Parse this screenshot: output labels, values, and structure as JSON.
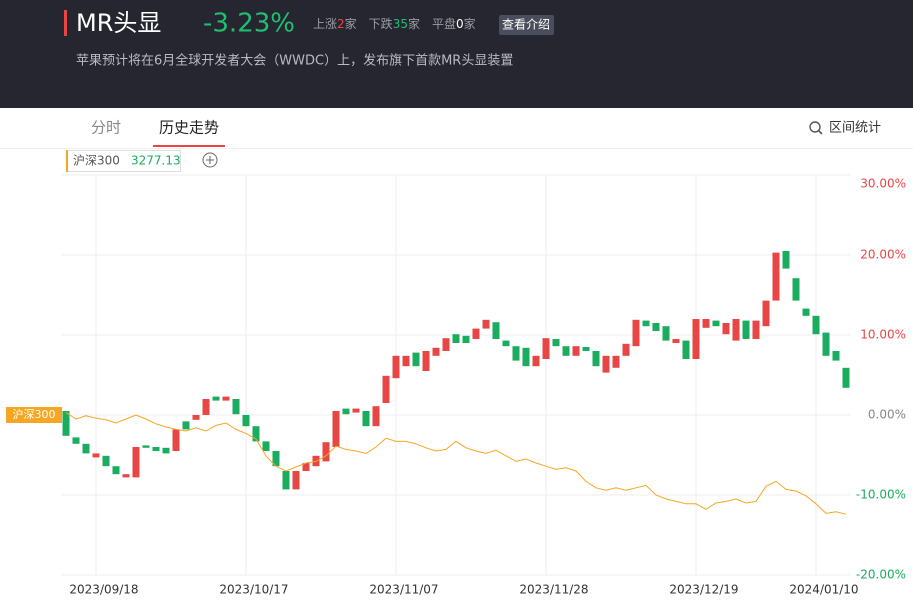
{
  "header": {
    "title": "MR头显",
    "change": "-3.23%",
    "stats": [
      {
        "label": "上涨",
        "count": 2,
        "unit": "家"
      },
      {
        "label": "下跌",
        "count": 35,
        "unit": "家"
      },
      {
        "label": "平盘",
        "count": 0,
        "unit": "家"
      }
    ],
    "button": "查看介绍",
    "description": "苹果预计将在6月全球开发者大会（WWDC）上，发布旗下首款MR头显装置"
  },
  "tabs": {
    "items": [
      "分时",
      "历史走势"
    ],
    "tool": "区间统计"
  },
  "chart_data": {
    "type": "candlestick",
    "up_color": "#e84545",
    "down_color": "#1aad5f",
    "open": [
      0.5,
      -2.8,
      -3.6,
      -5.3,
      -5.1,
      -6.4,
      -7.8,
      -7.8,
      -3.8,
      -4.0,
      -4.1,
      -4.5,
      -0.8,
      -0.6,
      0,
      2.3,
      1.8,
      2.0,
      0,
      -1.4,
      -3.3,
      -4.5,
      -7.0,
      -9.3,
      -7.0,
      -6.4,
      -5.8,
      -4.0,
      0.8,
      0.3,
      0.5,
      -1.4,
      1.5,
      4.6,
      6.1,
      7.8,
      5.5,
      7.4,
      8.0,
      10.1,
      9.9,
      9.5,
      10.8,
      11.6,
      9.3,
      8.6,
      8.4,
      6.1,
      7.0,
      9.5,
      8.6,
      7.4,
      8.5,
      8.0,
      5.3,
      5.9,
      7.4,
      8.6,
      11.8,
      11.5,
      11.1,
      9.0,
      9.3,
      7.0,
      10.9,
      11.8,
      10.1,
      9.3,
      11.8,
      9.5,
      11.1,
      14.3,
      20.5,
      17.1,
      13.3,
      12.4,
      10.3,
      8.0,
      5.9
    ],
    "close": [
      -2.6,
      -3.6,
      -4.8,
      -4.8,
      -6.4,
      -7.4,
      -7.4,
      -4.0,
      -4.1,
      -4.5,
      -4.8,
      -1.8,
      -1.8,
      0,
      2.0,
      1.8,
      2.3,
      0.1,
      -1.4,
      -3.3,
      -4.5,
      -6.4,
      -9.3,
      -7.0,
      -6.0,
      -5.1,
      -3.4,
      0.5,
      0.1,
      0.8,
      -1.4,
      1.1,
      4.9,
      7.4,
      7.4,
      6.1,
      8.0,
      8.4,
      9.6,
      9.0,
      9.0,
      10.8,
      11.9,
      9.5,
      8.6,
      6.8,
      6.1,
      7.4,
      9.6,
      8.6,
      7.4,
      8.6,
      8.0,
      6.1,
      7.4,
      7.4,
      8.9,
      11.9,
      11.1,
      10.5,
      9.3,
      9.5,
      7.0,
      12.0,
      12.0,
      11.1,
      11.5,
      12.0,
      9.5,
      11.8,
      14.3,
      20.3,
      18.3,
      14.3,
      12.4,
      10.1,
      7.4,
      6.8,
      3.4
    ],
    "series": [
      {
        "name": "沪深300",
        "color": "#f5a623",
        "last_value": 3277.13,
        "values": [
          0.3,
          -0.5,
          -0.1,
          -0.4,
          -0.6,
          -1.0,
          -0.5,
          0,
          -0.5,
          -1.1,
          -1.5,
          -1.8,
          -2.0,
          -1.6,
          -2.0,
          -1.3,
          -1.0,
          -1.8,
          -2.3,
          -3.0,
          -5.1,
          -6.4,
          -7.0,
          -6.5,
          -6.0,
          -5.8,
          -5.1,
          -3.9,
          -4.3,
          -4.5,
          -4.8,
          -4.0,
          -2.9,
          -3.3,
          -3.3,
          -3.6,
          -4.1,
          -4.5,
          -4.3,
          -3.3,
          -4.1,
          -4.5,
          -4.8,
          -4.4,
          -5.1,
          -5.8,
          -5.5,
          -6.0,
          -6.4,
          -6.8,
          -6.6,
          -7.0,
          -8.3,
          -9.1,
          -9.4,
          -9.1,
          -9.4,
          -9.1,
          -8.8,
          -10.0,
          -10.5,
          -10.8,
          -11.1,
          -11.1,
          -11.8,
          -11.0,
          -10.8,
          -10.5,
          -11.0,
          -10.8,
          -8.9,
          -8.3,
          -9.3,
          -9.5,
          -10.1,
          -11.1,
          -12.3,
          -12.1,
          -12.4
        ]
      }
    ],
    "xlim": [
      -0.5,
      78.5
    ],
    "xticks": [
      {
        "value": 3,
        "label": "2023/09/18"
      },
      {
        "value": 18,
        "label": "2023/10/17"
      },
      {
        "value": 33,
        "label": "2023/11/07"
      },
      {
        "value": 48,
        "label": "2023/11/28"
      },
      {
        "value": 63,
        "label": "2023/12/19"
      },
      {
        "value": 75,
        "label": "2024/01/10"
      }
    ],
    "ylim": [
      -20,
      30
    ],
    "yticks": [
      {
        "value": 30,
        "label": "30.00%"
      },
      {
        "value": 20,
        "label": "20.00%"
      },
      {
        "value": 10,
        "label": "10.00%"
      },
      {
        "value": 0,
        "label": "0.00%"
      },
      {
        "value": -10,
        "label": "-10.00%"
      },
      {
        "value": -20,
        "label": "-20.00%"
      }
    ],
    "grid": true
  }
}
